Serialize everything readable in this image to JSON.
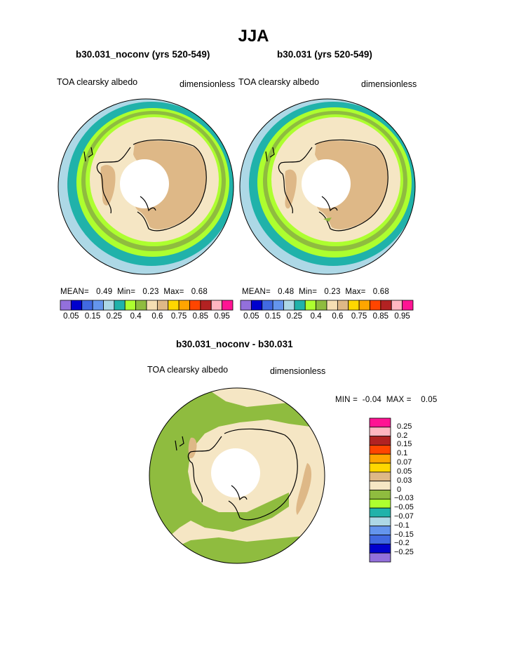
{
  "page": {
    "title": "JJA",
    "bottom_title": "b30.031_noconv - b30.031"
  },
  "panels": [
    {
      "subtitle": "b30.031_noconv (yrs 520-549)",
      "left_label": "TOA clearsky albedo",
      "right_label": "dimensionless",
      "stats": {
        "mean_label": "MEAN=",
        "mean": "0.49",
        "min_label": "Min=",
        "min": "0.23",
        "max_label": "Max=",
        "max": "0.68"
      }
    },
    {
      "subtitle": "b30.031 (yrs 520-549)",
      "left_label": "TOA clearsky albedo",
      "right_label": "dimensionless",
      "stats": {
        "mean_label": "MEAN=",
        "mean": "0.48",
        "min_label": "Min=",
        "min": "0.23",
        "max_label": "Max=",
        "max": "0.68"
      }
    }
  ],
  "horizontal_colorbar": {
    "colors": [
      "#9370db",
      "#0000cd",
      "#4169e1",
      "#6495ed",
      "#add8e6",
      "#20b2aa",
      "#adff2f",
      "#8fbc3f",
      "#f5deb3",
      "#deb887",
      "#ffd700",
      "#ffa500",
      "#ff4500",
      "#b22222",
      "#ffb6c1",
      "#ff1493"
    ],
    "tick_labels": [
      "0.05",
      "0.15",
      "0.25",
      "0.4",
      "0.6",
      "0.75",
      "0.85",
      "0.95"
    ]
  },
  "difference_panel": {
    "left_label": "TOA clearsky albedo",
    "right_label": "dimensionless",
    "min_label": "MIN =",
    "min": "-0.04",
    "max_label": "MAX =",
    "max": "0.05"
  },
  "vertical_colorbar": {
    "colors": [
      "#ff1493",
      "#ffb6c1",
      "#b22222",
      "#ff4500",
      "#ffa500",
      "#ffd700",
      "#deb887",
      "#f5e6c4",
      "#8fbc3f",
      "#adff2f",
      "#20b2aa",
      "#add8e6",
      "#6495ed",
      "#4169e1",
      "#0000cd",
      "#9370db"
    ],
    "tick_labels": [
      "0.25",
      "0.2",
      "0.15",
      "0.1",
      "0.07",
      "0.05",
      "0.03",
      "0",
      "−0.03",
      "−0.05",
      "−0.07",
      "−0.1",
      "−0.15",
      "−0.2",
      "−0.25"
    ]
  },
  "map_colors": {
    "outer_ring": "#add8e6",
    "teal": "#20b2aa",
    "light_green": "#adff2f",
    "green": "#8fbc3f",
    "wheat": "#f5e6c4",
    "tan": "#deb887",
    "missing": "#ffffff",
    "coast": "#000000"
  }
}
